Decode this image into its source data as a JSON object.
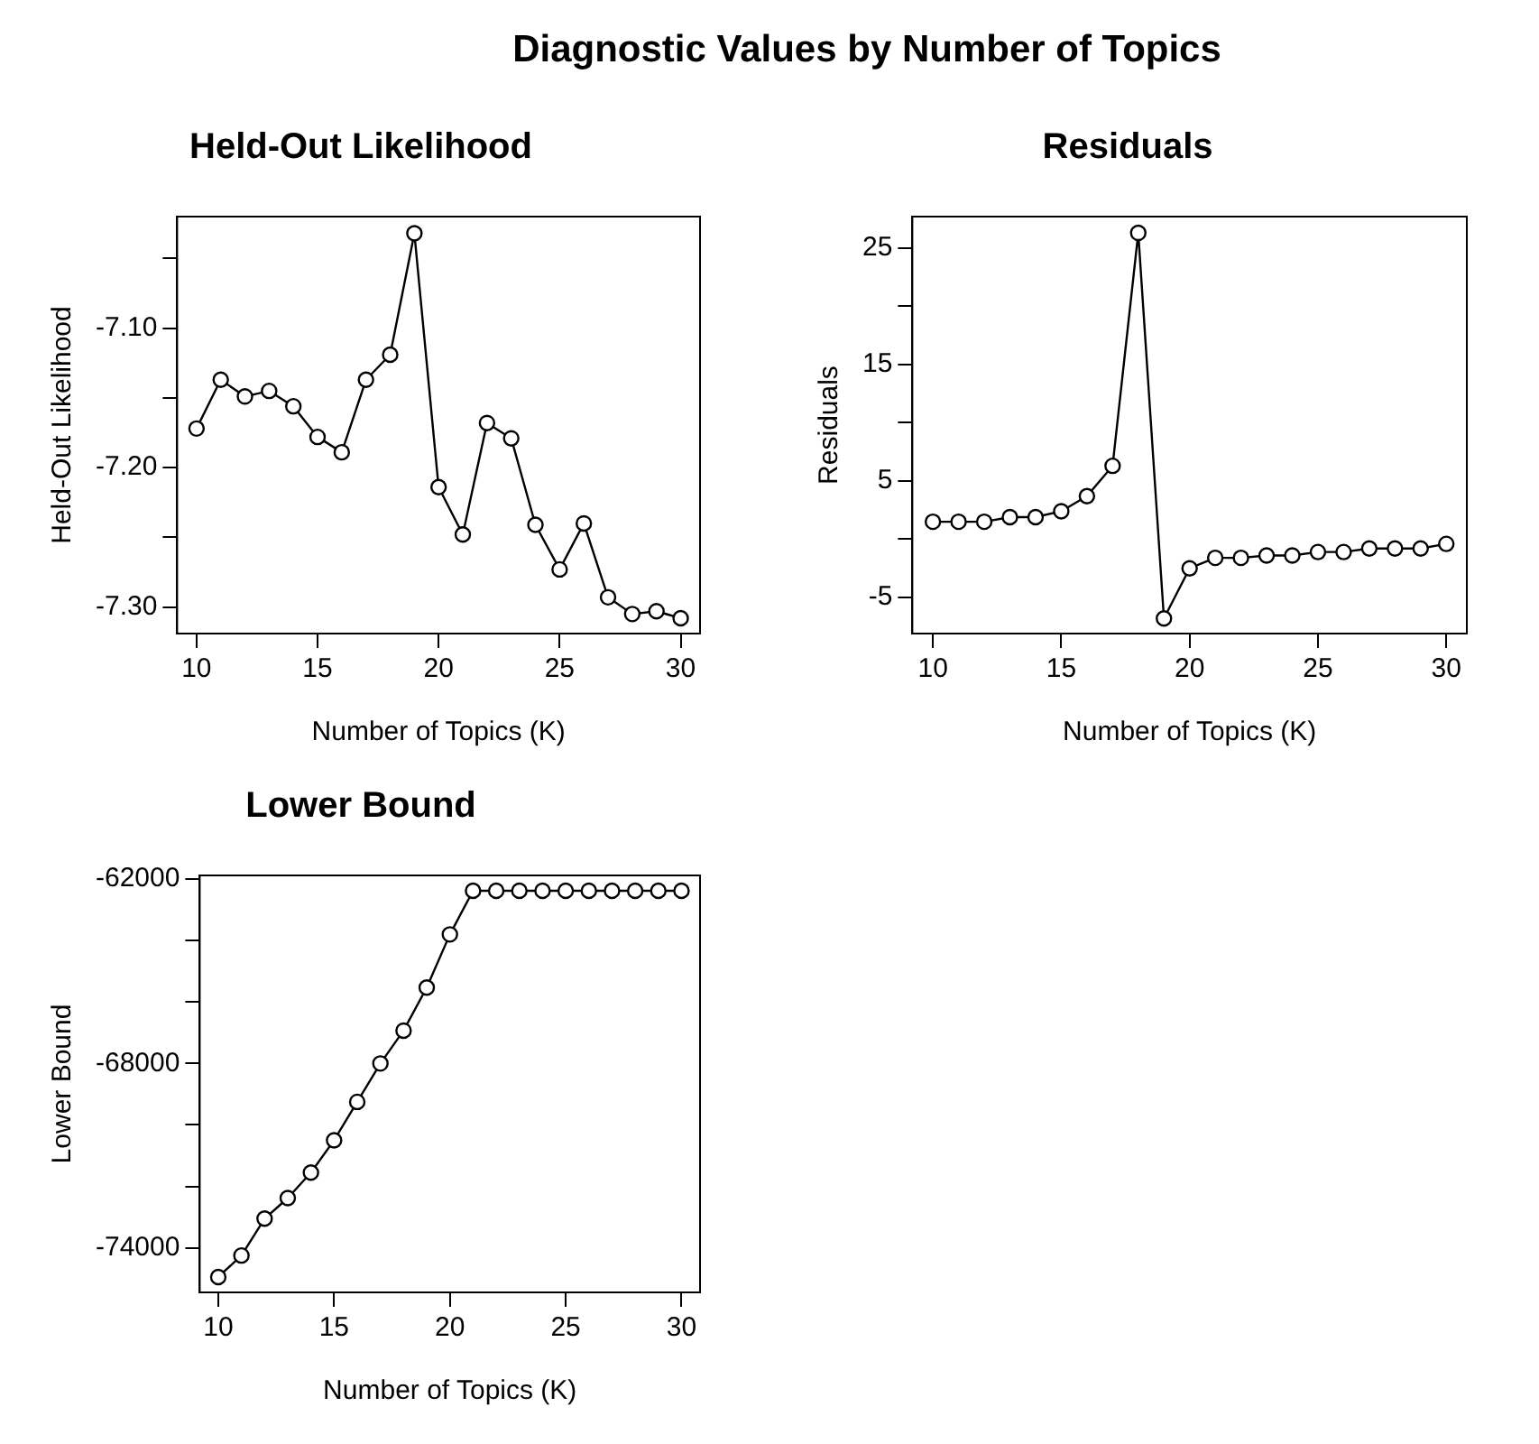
{
  "chart_data": [
    {
      "type": "other",
      "title": "Diagnostic Values by Number of Topics"
    },
    {
      "type": "line",
      "title": "Held-Out Likelihood",
      "xlabel": "Number of Topics (K)",
      "ylabel": "Held-Out Likelihood",
      "marker": "circle",
      "line_style": "solid",
      "grid": false,
      "legend": false,
      "xlim": [
        9.2,
        30.8
      ],
      "xticks": [
        10,
        15,
        20,
        25,
        30
      ],
      "ylim": [
        -7.319,
        -7.02
      ],
      "yticks": [
        {
          "value": -7.3,
          "label": "-7.30"
        },
        {
          "value": -7.25,
          "label": null
        },
        {
          "value": -7.2,
          "label": "-7.20"
        },
        {
          "value": -7.15,
          "label": null
        },
        {
          "value": -7.1,
          "label": "-7.10"
        },
        {
          "value": -7.05,
          "label": null
        }
      ],
      "series": [
        {
          "color": "#000000",
          "x": [
            10,
            11,
            12,
            13,
            14,
            15,
            16,
            17,
            18,
            19,
            20,
            21,
            22,
            23,
            24,
            25,
            26,
            27,
            28,
            29,
            30
          ],
          "values": [
            -7.172,
            -7.137,
            -7.149,
            -7.145,
            -7.156,
            -7.178,
            -7.189,
            -7.137,
            -7.119,
            -7.032,
            -7.214,
            -7.248,
            -7.168,
            -7.179,
            -7.241,
            -7.273,
            -7.24,
            -7.293,
            -7.305,
            -7.303,
            -7.308
          ]
        }
      ]
    },
    {
      "type": "line",
      "title": "Residuals",
      "xlabel": "Number of Topics (K)",
      "ylabel": "Residuals",
      "marker": "circle",
      "line_style": "solid",
      "grid": false,
      "legend": false,
      "xlim": [
        9.2,
        30.8
      ],
      "xticks": [
        10,
        15,
        20,
        25,
        30
      ],
      "ylim": [
        -8.1,
        27.7
      ],
      "yticks": [
        -5,
        {
          "value": 0,
          "label": null
        },
        5,
        {
          "value": 10,
          "label": null
        },
        15,
        {
          "value": 20,
          "label": null
        },
        25
      ],
      "series": [
        {
          "color": "#000000",
          "x": [
            10,
            11,
            12,
            13,
            14,
            15,
            16,
            17,
            18,
            19,
            20,
            21,
            22,
            23,
            24,
            25,
            26,
            27,
            28,
            29,
            30
          ],
          "values": [
            1.5,
            1.5,
            1.5,
            1.9,
            1.9,
            2.4,
            3.7,
            6.3,
            26.3,
            -6.8,
            -2.5,
            -1.6,
            -1.6,
            -1.4,
            -1.4,
            -1.1,
            -1.1,
            -0.8,
            -0.8,
            -0.8,
            -0.4
          ]
        }
      ]
    },
    {
      "type": "line",
      "title": "Lower Bound",
      "xlabel": "Number of Topics (K)",
      "ylabel": "Lower Bound",
      "marker": "circle",
      "line_style": "solid",
      "grid": false,
      "legend": false,
      "xlim": [
        9.2,
        30.8
      ],
      "xticks": [
        10,
        15,
        20,
        25,
        30
      ],
      "ylim": [
        -75450,
        -61880
      ],
      "yticks": [
        -74000,
        {
          "value": -72000,
          "label": null
        },
        {
          "value": -70000,
          "label": null
        },
        -68000,
        {
          "value": -66000,
          "label": null
        },
        {
          "value": -64000,
          "label": null
        },
        -62000
      ],
      "series": [
        {
          "color": "#000000",
          "x": [
            10,
            11,
            12,
            13,
            14,
            15,
            16,
            17,
            18,
            19,
            20,
            21,
            22,
            23,
            24,
            25,
            26,
            27,
            28,
            29,
            30
          ],
          "values": [
            -74950,
            -74250,
            -73050,
            -72380,
            -71550,
            -70500,
            -69250,
            -68000,
            -66930,
            -65530,
            -63800,
            -62380,
            -62380,
            -62380,
            -62380,
            -62380,
            -62380,
            -62380,
            -62380,
            -62380,
            -62380
          ]
        }
      ]
    }
  ]
}
